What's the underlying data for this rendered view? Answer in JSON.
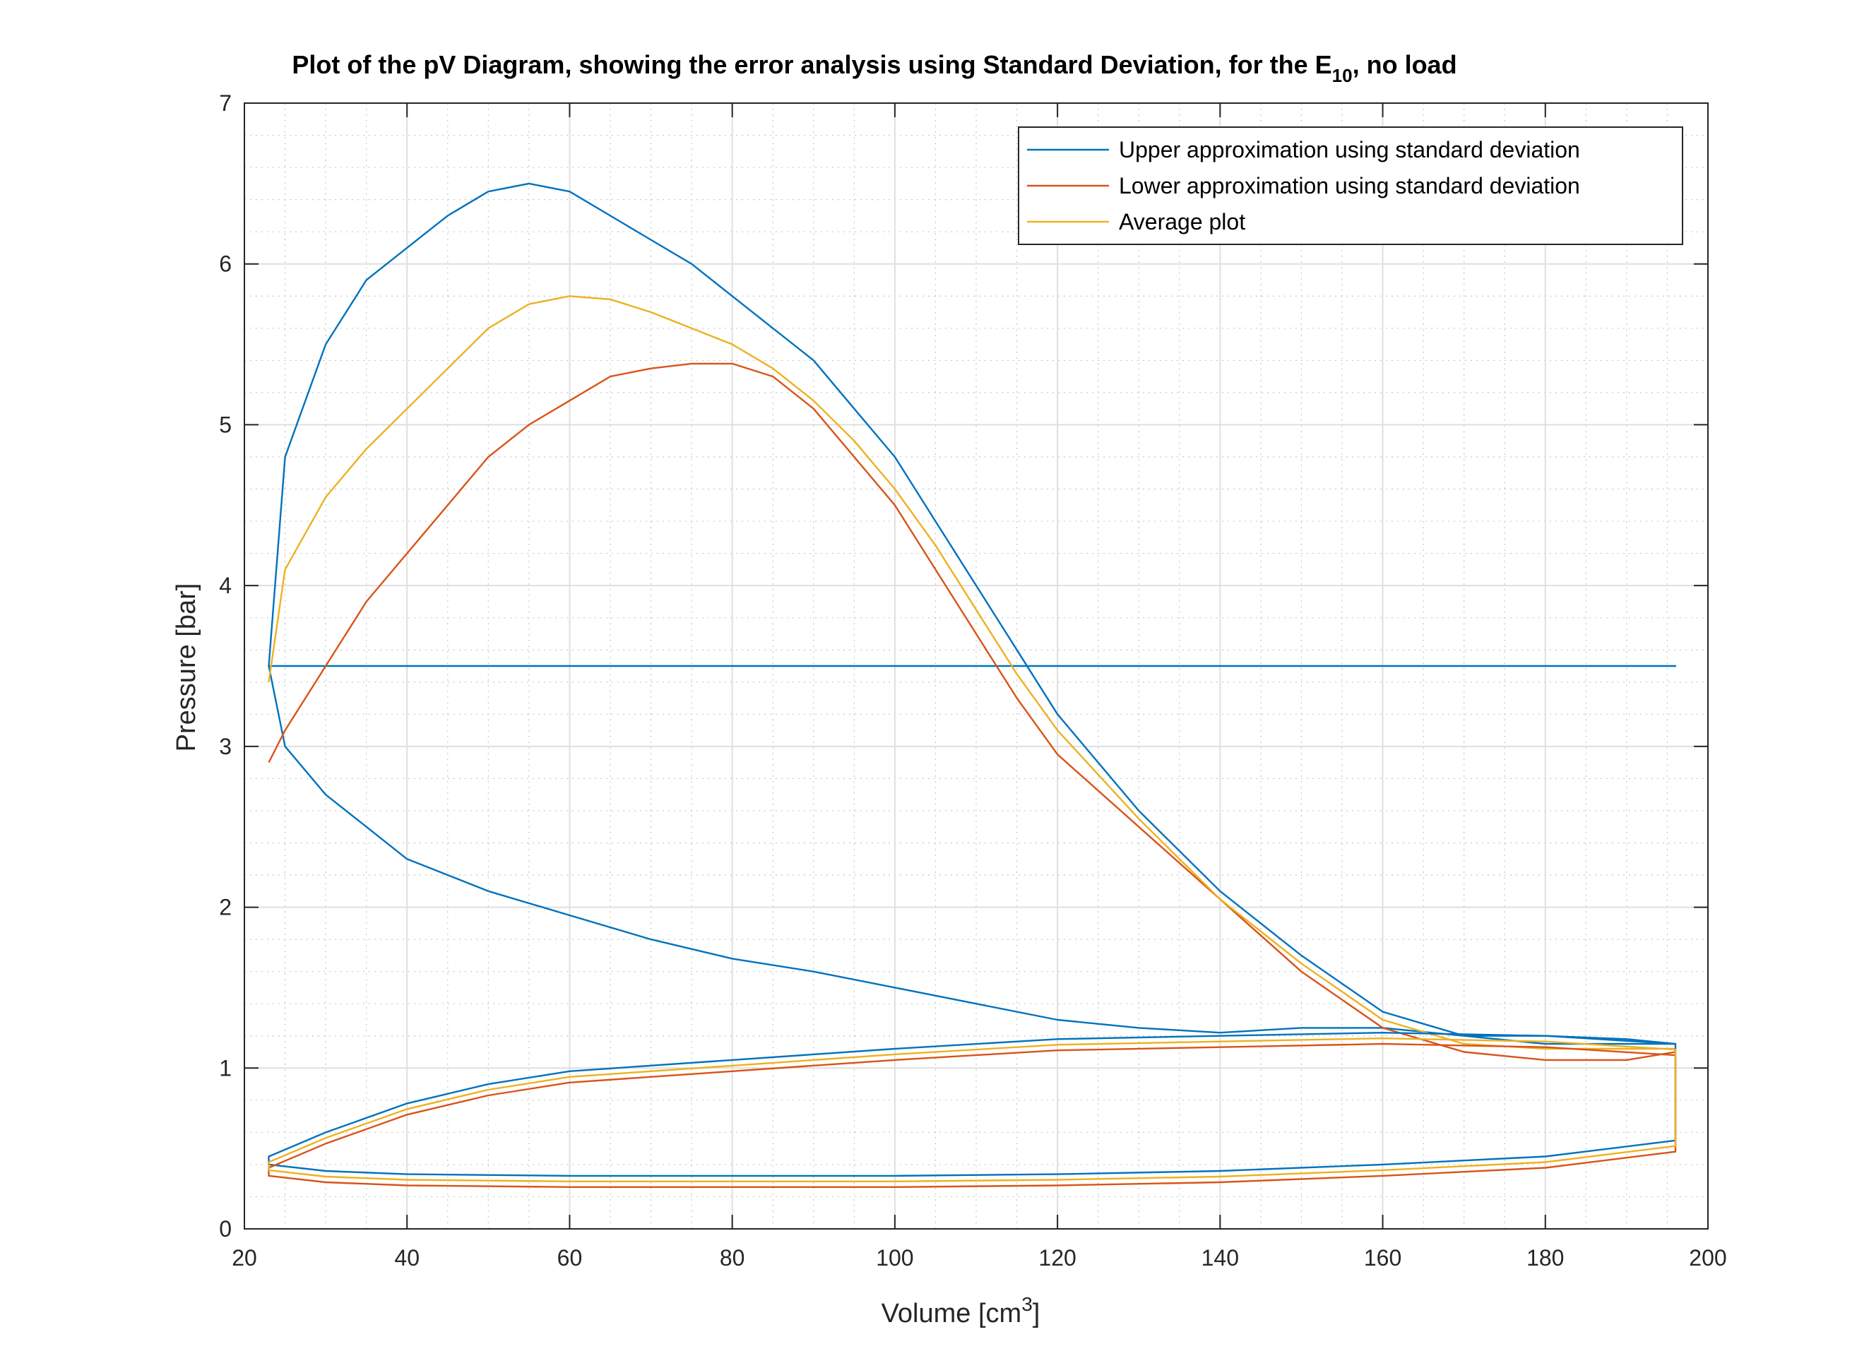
{
  "chart_data": {
    "type": "line",
    "title": "Plot of the pV Diagram, showing the error analysis using Standard Deviation, for the E",
    "title_subscript": "10",
    "title_suffix": ", no load",
    "xlabel": "Volume [cm",
    "xlabel_superscript": "3",
    "xlabel_suffix": "]",
    "ylabel": "Pressure [bar]",
    "xlim": [
      20,
      200
    ],
    "ylim": [
      0,
      7
    ],
    "xticks": [
      20,
      40,
      60,
      80,
      100,
      120,
      140,
      160,
      180,
      200
    ],
    "yticks": [
      0,
      1,
      2,
      3,
      4,
      5,
      6,
      7
    ],
    "grid": true,
    "minor_grid": true,
    "legend_position": "top-right",
    "series": [
      {
        "name": "Upper approximation using standard deviation",
        "color": "#0072BD",
        "x": [
          23,
          25,
          30,
          35,
          40,
          45,
          50,
          55,
          60,
          65,
          70,
          75,
          80,
          85,
          90,
          95,
          100,
          105,
          110,
          115,
          120,
          130,
          140,
          150,
          160,
          170,
          180,
          190,
          196,
          196,
          180,
          170,
          160,
          150,
          140,
          130,
          120,
          110,
          100,
          90,
          80,
          70,
          60,
          50,
          45,
          40,
          35,
          30,
          25,
          23,
          23,
          25,
          30,
          35,
          40,
          45,
          50,
          60,
          70,
          80,
          90,
          100,
          110,
          120,
          130,
          140,
          150,
          160,
          170,
          180,
          190,
          196,
          196,
          190,
          180,
          160,
          140,
          120,
          100,
          80,
          60,
          40,
          30,
          25,
          23,
          23
        ],
        "y": [
          3.5,
          4.8,
          5.5,
          5.9,
          6.1,
          6.3,
          6.45,
          6.5,
          6.45,
          6.3,
          6.15,
          6.0,
          5.8,
          5.6,
          5.4,
          5.1,
          4.8,
          4.4,
          4.0,
          3.6,
          3.2,
          2.6,
          2.1,
          1.7,
          1.35,
          1.2,
          1.2,
          1.18,
          1.15,
          1.15,
          1.15,
          1.2,
          1.25,
          1.25,
          1.22,
          1.25,
          1.3,
          1.4,
          1.5,
          1.6,
          1.68,
          1.8,
          1.95,
          2.1,
          2.2,
          2.3,
          2.5,
          2.7,
          3.0,
          3.5,
          3.5,
          3.5,
          3.5,
          3.5,
          3.5,
          3.5,
          3.5,
          3.5,
          3.5,
          3.5,
          3.5,
          3.5,
          3.5,
          3.5,
          3.5,
          3.5,
          3.5,
          3.5,
          3.5,
          3.5,
          3.5,
          3.5,
          3.5,
          3.5,
          3.5,
          3.5,
          3.5,
          3.5,
          3.5,
          3.5,
          3.5,
          3.5,
          3.5,
          3.5,
          3.5,
          3.5
        ]
      },
      {
        "name": "Lower approximation using standard deviation",
        "color": "#D95319",
        "x": [
          23,
          25,
          30,
          35,
          40,
          45,
          50,
          55,
          60,
          65,
          70,
          75,
          80,
          85,
          90,
          95,
          100,
          105,
          110,
          115,
          120,
          130,
          140,
          150,
          160,
          170,
          180,
          190,
          196
        ],
        "y": [
          2.9,
          3.1,
          3.5,
          3.9,
          4.2,
          4.5,
          4.8,
          5.0,
          5.15,
          5.3,
          5.35,
          5.38,
          5.38,
          5.3,
          5.1,
          4.8,
          4.5,
          4.1,
          3.7,
          3.3,
          2.95,
          2.5,
          2.05,
          1.6,
          1.25,
          1.1,
          1.05,
          1.05,
          1.1
        ]
      },
      {
        "name": "Average plot",
        "color": "#EDB120",
        "x": [
          23,
          25,
          30,
          35,
          40,
          45,
          50,
          55,
          60,
          65,
          70,
          75,
          80,
          85,
          90,
          95,
          100,
          105,
          110,
          115,
          120,
          130,
          140,
          150,
          160,
          170,
          180,
          190,
          196
        ],
        "y": [
          3.4,
          4.1,
          4.55,
          4.85,
          5.1,
          5.35,
          5.6,
          5.75,
          5.8,
          5.78,
          5.7,
          5.6,
          5.5,
          5.35,
          5.15,
          4.9,
          4.6,
          4.25,
          3.85,
          3.45,
          3.1,
          2.55,
          2.05,
          1.65,
          1.3,
          1.15,
          1.12,
          1.12,
          1.12
        ]
      }
    ]
  }
}
